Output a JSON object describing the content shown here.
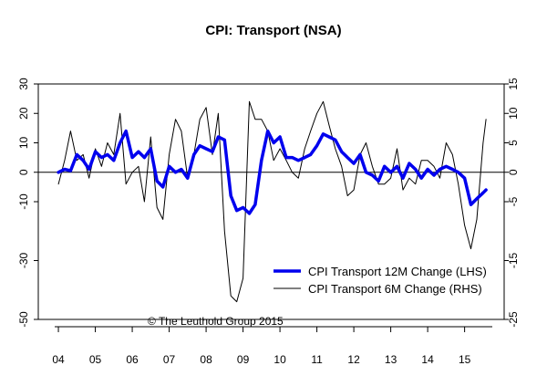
{
  "chart_data": {
    "type": "line",
    "title": "CPI: Transport (NSA)",
    "credit": "© The Leuthold Group 2015",
    "x_tick_labels": [
      "04",
      "05",
      "06",
      "07",
      "08",
      "09",
      "10",
      "11",
      "12",
      "13",
      "14",
      "15"
    ],
    "x_range": [
      2003.9,
      2015.75
    ],
    "left_axis": {
      "range": [
        -50,
        30
      ],
      "ticks": [
        30,
        20,
        10,
        0,
        -10,
        -30,
        -50
      ]
    },
    "right_axis": {
      "range": [
        -25,
        15
      ],
      "ticks": [
        15,
        10,
        5,
        0,
        -5,
        -15,
        -25
      ]
    },
    "legend_position": "bottom-right",
    "series": [
      {
        "name": "CPI Transport 12M Change (LHS)",
        "axis": "left",
        "color": "#0000ee",
        "x": [
          2004.0,
          2004.17,
          2004.33,
          2004.5,
          2004.67,
          2004.83,
          2005.0,
          2005.17,
          2005.33,
          2005.5,
          2005.67,
          2005.83,
          2006.0,
          2006.17,
          2006.33,
          2006.5,
          2006.67,
          2006.83,
          2007.0,
          2007.17,
          2007.33,
          2007.5,
          2007.67,
          2007.83,
          2008.0,
          2008.17,
          2008.33,
          2008.5,
          2008.67,
          2008.83,
          2009.0,
          2009.17,
          2009.33,
          2009.5,
          2009.67,
          2009.83,
          2010.0,
          2010.17,
          2010.33,
          2010.5,
          2010.67,
          2010.83,
          2011.0,
          2011.17,
          2011.33,
          2011.5,
          2011.67,
          2011.83,
          2012.0,
          2012.17,
          2012.33,
          2012.5,
          2012.67,
          2012.83,
          2013.0,
          2013.17,
          2013.33,
          2013.5,
          2013.67,
          2013.83,
          2014.0,
          2014.17,
          2014.33,
          2014.5,
          2014.67,
          2014.83,
          2015.0,
          2015.17,
          2015.33,
          2015.5,
          2015.58
        ],
        "values": [
          0,
          1,
          0.5,
          6,
          4,
          1,
          7,
          5,
          6,
          4,
          10,
          14,
          5,
          7,
          5,
          8,
          -3,
          -5,
          2,
          0,
          1,
          -2,
          6,
          9,
          8,
          7,
          12,
          11,
          -8,
          -13,
          -12,
          -14,
          -11,
          4,
          14,
          10,
          12,
          5,
          5,
          4,
          5,
          6,
          9,
          13,
          12,
          11,
          7,
          5,
          3,
          6,
          0,
          -1,
          -3,
          2,
          0,
          2,
          -2,
          3,
          1,
          -2,
          1,
          -1,
          1,
          2,
          1,
          0,
          -2,
          -11,
          -9,
          -7,
          -6
        ]
      },
      {
        "name": "CPI Transport 6M Change (RHS)",
        "axis": "right",
        "color": "#000000",
        "x": [
          2004.0,
          2004.17,
          2004.33,
          2004.5,
          2004.67,
          2004.83,
          2005.0,
          2005.17,
          2005.33,
          2005.5,
          2005.67,
          2005.83,
          2006.0,
          2006.17,
          2006.33,
          2006.5,
          2006.67,
          2006.83,
          2007.0,
          2007.17,
          2007.33,
          2007.5,
          2007.67,
          2007.83,
          2008.0,
          2008.17,
          2008.33,
          2008.5,
          2008.67,
          2008.83,
          2009.0,
          2009.17,
          2009.33,
          2009.5,
          2009.67,
          2009.83,
          2010.0,
          2010.17,
          2010.33,
          2010.5,
          2010.67,
          2010.83,
          2011.0,
          2011.17,
          2011.33,
          2011.5,
          2011.67,
          2011.83,
          2012.0,
          2012.17,
          2012.33,
          2012.5,
          2012.67,
          2012.83,
          2013.0,
          2013.17,
          2013.33,
          2013.5,
          2013.67,
          2013.83,
          2014.0,
          2014.17,
          2014.33,
          2014.5,
          2014.67,
          2014.83,
          2015.0,
          2015.17,
          2015.33,
          2015.5,
          2015.58
        ],
        "values": [
          -2,
          2,
          7,
          2,
          3,
          -1,
          4,
          1,
          5,
          3,
          10,
          -2,
          0,
          1,
          -5,
          6,
          -6,
          -8,
          3,
          9,
          7,
          -1,
          3,
          9,
          11,
          3,
          10,
          -10,
          -21,
          -22,
          -18,
          12,
          9,
          9,
          7,
          2,
          4,
          2,
          0,
          -1,
          4,
          7,
          10,
          12,
          8,
          4,
          1,
          -4,
          -3,
          3,
          5,
          1,
          -2,
          -2,
          -1,
          4,
          -3,
          -1,
          -2,
          2,
          2,
          1,
          -1,
          5,
          3,
          -2,
          -9,
          -13,
          -8,
          5,
          9
        ]
      }
    ]
  }
}
